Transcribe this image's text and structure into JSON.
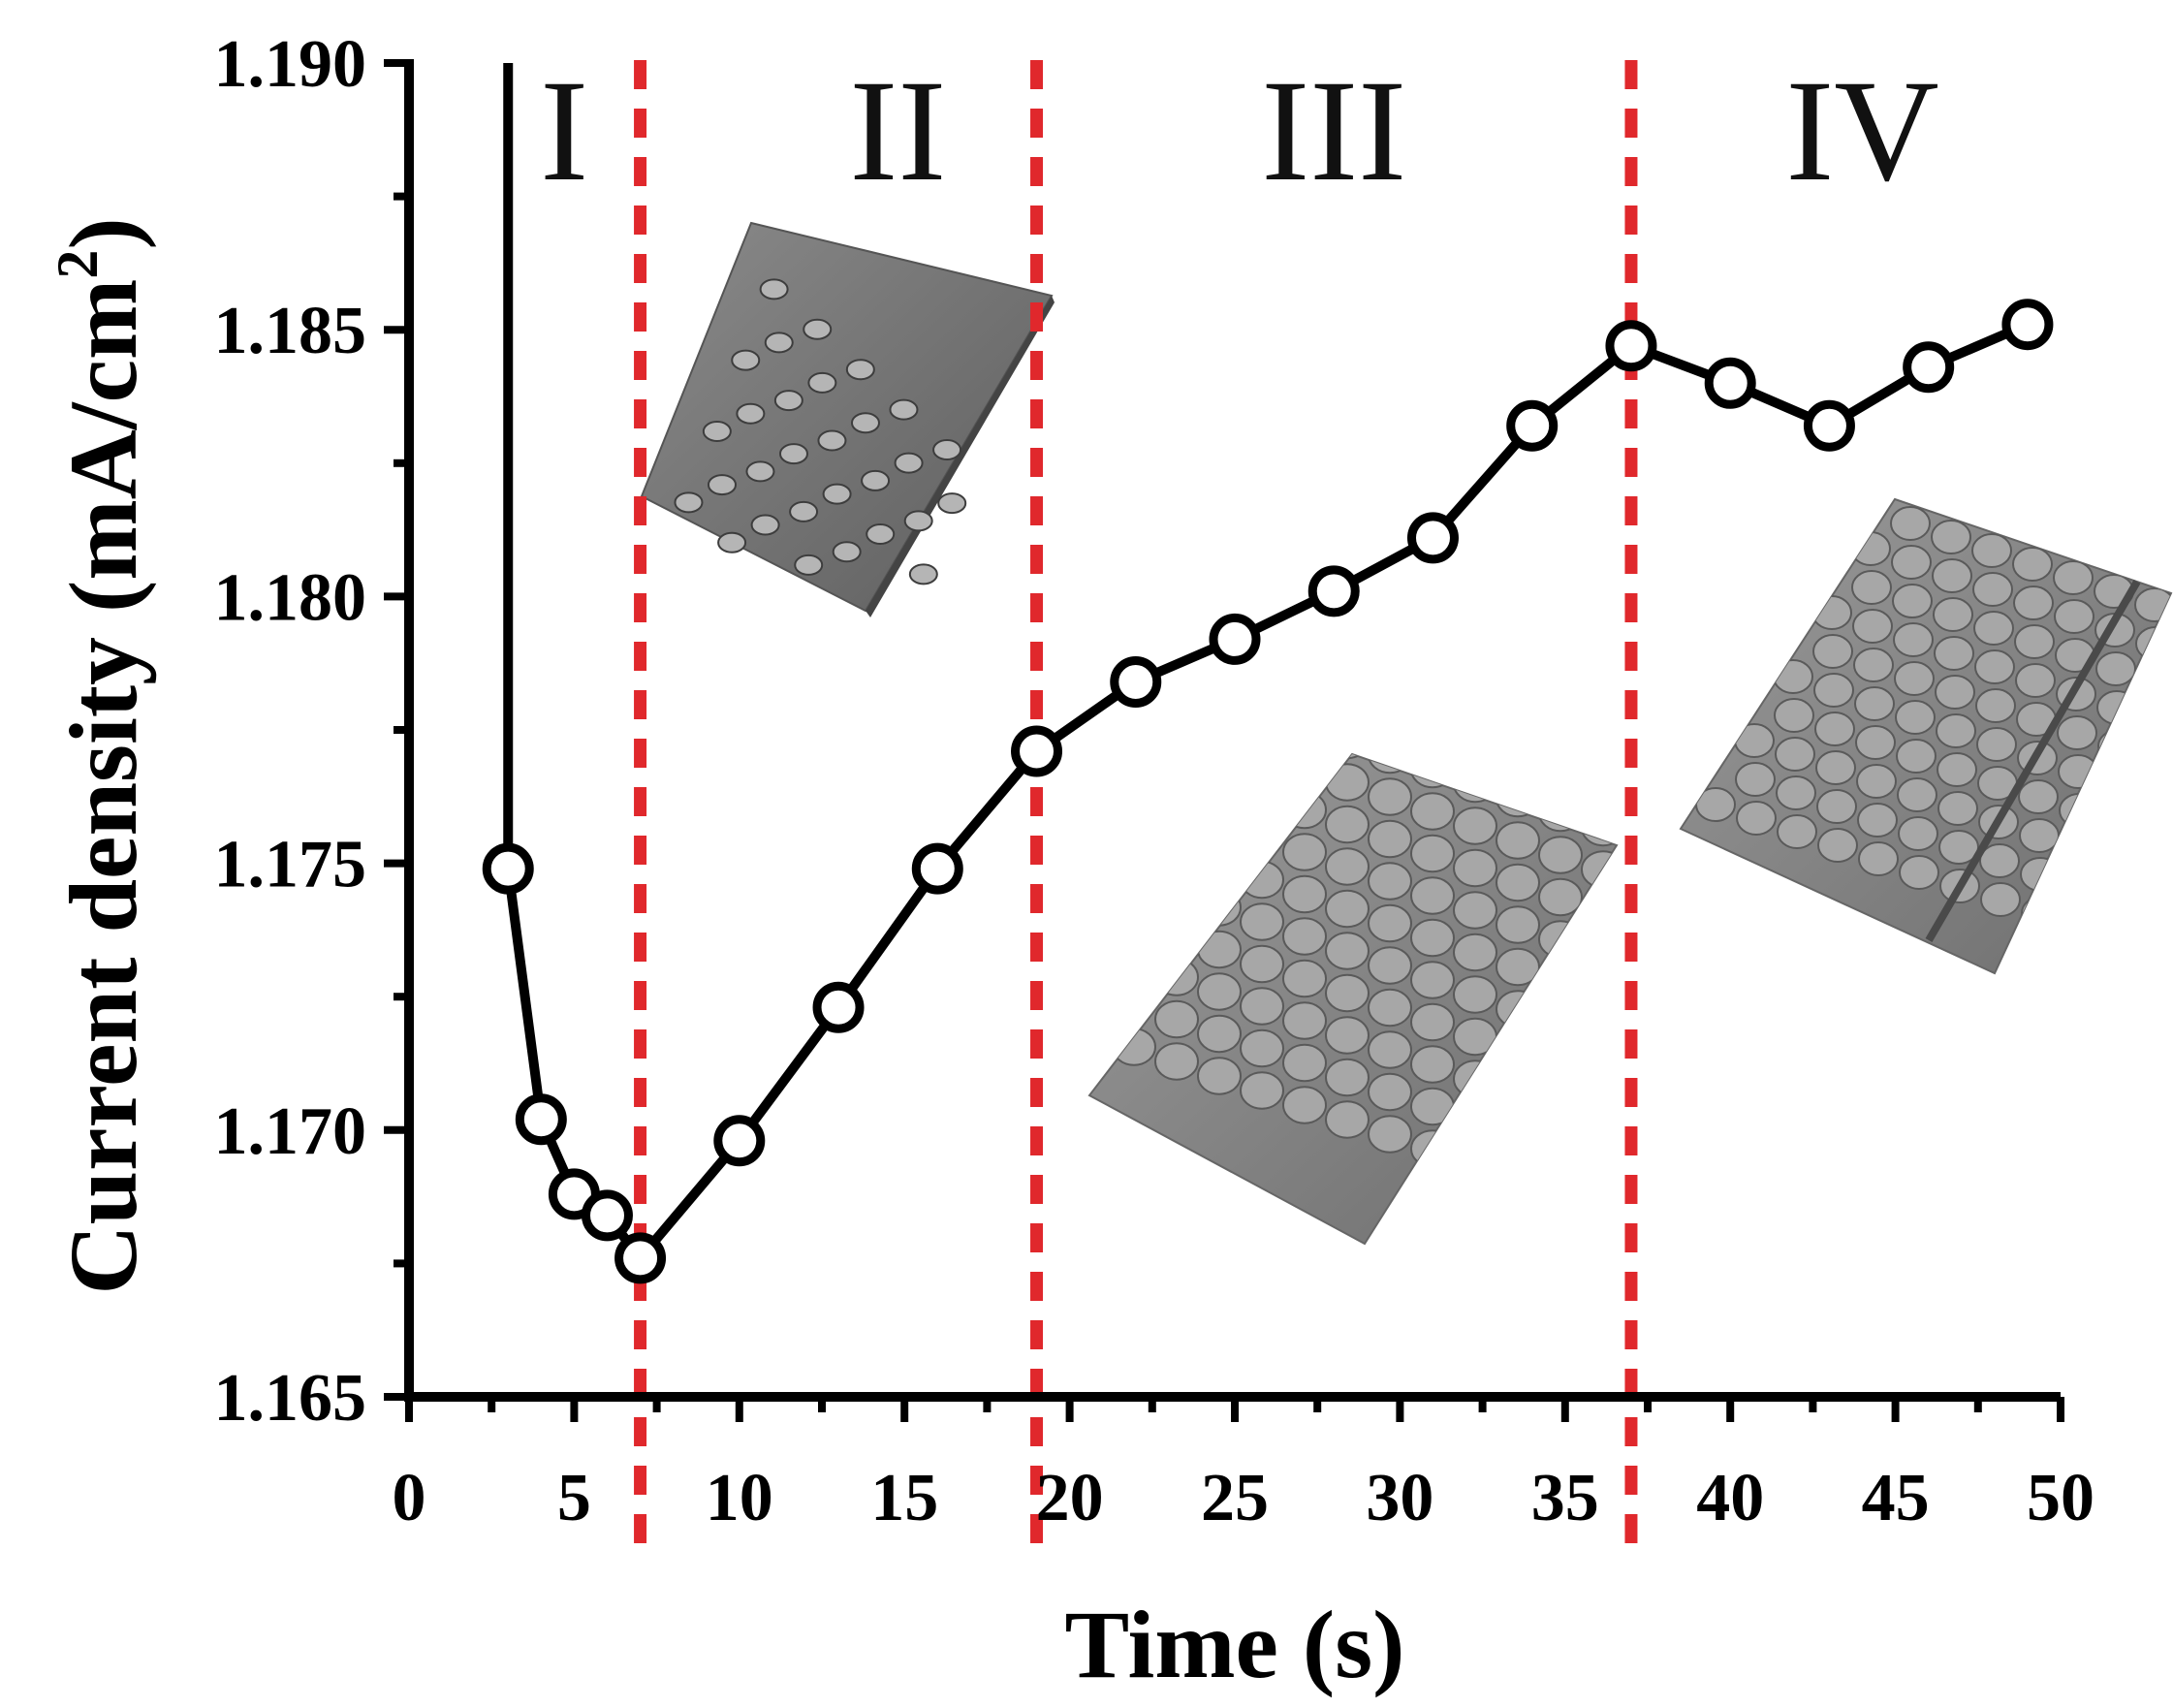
{
  "chart_data": {
    "type": "line",
    "title": "",
    "xlabel": "Time (s)",
    "ylabel_main": "Current density (mA/cm",
    "ylabel_sup": "2",
    "ylabel_close": ")",
    "xlim": [
      0,
      50
    ],
    "ylim": [
      1.165,
      1.19
    ],
    "xticks": [
      0,
      5,
      10,
      15,
      20,
      25,
      30,
      35,
      40,
      45,
      50
    ],
    "xtick_labels": [
      "0",
      "5",
      "10",
      "15",
      "20",
      "25",
      "30",
      "35",
      "40",
      "45",
      "50"
    ],
    "yticks": [
      1.165,
      1.17,
      1.175,
      1.18,
      1.185,
      1.19
    ],
    "ytick_labels": [
      "1.165",
      "1.170",
      "1.175",
      "1.180",
      "1.185",
      "1.190"
    ],
    "grid": false,
    "colors": {
      "series": "#000000",
      "divider": "#e0282c",
      "marker_fill": "#ffffff"
    },
    "vertical_spike": {
      "x": 3,
      "y_from": 1.19,
      "y_to": 1.175
    },
    "series": [
      {
        "name": "current density",
        "marker": "open-circle",
        "x": [
          3,
          4,
          5,
          6,
          7,
          10,
          13,
          16,
          19,
          22,
          25,
          28,
          31,
          34,
          37,
          40,
          43,
          46,
          49
        ],
        "y": [
          1.1749,
          1.1702,
          1.1688,
          1.1684,
          1.1676,
          1.1698,
          1.1723,
          1.1749,
          1.1771,
          1.1784,
          1.1792,
          1.1801,
          1.1811,
          1.1832,
          1.1847,
          1.184,
          1.1832,
          1.1843,
          1.1851
        ]
      }
    ],
    "region_dividers": [
      7,
      19,
      37
    ],
    "regions": [
      {
        "label": "I",
        "x": 4.7
      },
      {
        "label": "II",
        "x": 14.8
      },
      {
        "label": "III",
        "x": 28.0
      },
      {
        "label": "IV",
        "x": 44.0
      }
    ],
    "insets": [
      {
        "name": "sparse-nanoparticle-surface",
        "description_icon": "sem-inset-sparse"
      },
      {
        "name": "close-packed-nanosphere-surface",
        "description_icon": "sem-inset-packed"
      },
      {
        "name": "multilayer-nanosphere-surface",
        "description_icon": "sem-inset-multilayer"
      }
    ]
  }
}
